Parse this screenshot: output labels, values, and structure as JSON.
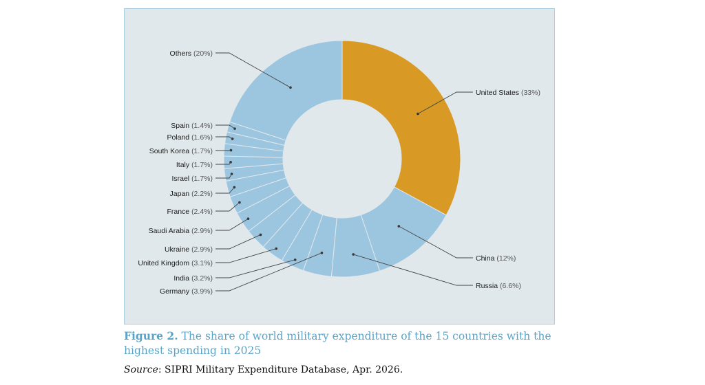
{
  "chart_data": {
    "type": "pie",
    "donut": true,
    "slices": [
      {
        "label": "United States",
        "value_label": "(33%)",
        "value": 33,
        "color": "#d89a24"
      },
      {
        "label": "China",
        "value_label": "(12%)",
        "value": 12,
        "color": "#9cc6df"
      },
      {
        "label": "Russia",
        "value_label": "(6.6%)",
        "value": 6.6,
        "color": "#9cc6df"
      },
      {
        "label": "Germany",
        "value_label": "(3.9%)",
        "value": 3.9,
        "color": "#9cc6df"
      },
      {
        "label": "India",
        "value_label": "(3.2%)",
        "value": 3.2,
        "color": "#9cc6df"
      },
      {
        "label": "United Kingdom",
        "value_label": "(3.1%)",
        "value": 3.1,
        "color": "#9cc6df"
      },
      {
        "label": "Ukraine",
        "value_label": "(2.9%)",
        "value": 2.9,
        "color": "#9cc6df"
      },
      {
        "label": "Saudi Arabia",
        "value_label": "(2.9%)",
        "value": 2.9,
        "color": "#9cc6df"
      },
      {
        "label": "France",
        "value_label": "(2.4%)",
        "value": 2.4,
        "color": "#9cc6df"
      },
      {
        "label": "Japan",
        "value_label": "(2.2%)",
        "value": 2.2,
        "color": "#9cc6df"
      },
      {
        "label": "Israel",
        "value_label": "(1.7%)",
        "value": 1.7,
        "color": "#9cc6df"
      },
      {
        "label": "Italy",
        "value_label": "(1.7%)",
        "value": 1.7,
        "color": "#9cc6df"
      },
      {
        "label": "South Korea",
        "value_label": "(1.7%)",
        "value": 1.7,
        "color": "#9cc6df"
      },
      {
        "label": "Poland",
        "value_label": "(1.6%)",
        "value": 1.6,
        "color": "#9cc6df"
      },
      {
        "label": "Spain",
        "value_label": "(1.4%)",
        "value": 1.4,
        "color": "#9cc6df"
      },
      {
        "label": "Others",
        "value_label": "(20%)",
        "value": 20,
        "color": "#9cc6df"
      }
    ]
  },
  "caption": {
    "figure_label": "Figure 2.",
    "text": "The share of world military expenditure of the 15 countries with the highest spending in 2025"
  },
  "source": {
    "label": "Source",
    "text": ": SIPRI Military Expenditure Database, Apr. 2026."
  },
  "colors": {
    "panel_background": "#e1e8ec",
    "panel_border": "#a9cde0",
    "highlight": "#d89a24",
    "other_slices": "#9cc6df",
    "caption": "#5aa3c8"
  }
}
